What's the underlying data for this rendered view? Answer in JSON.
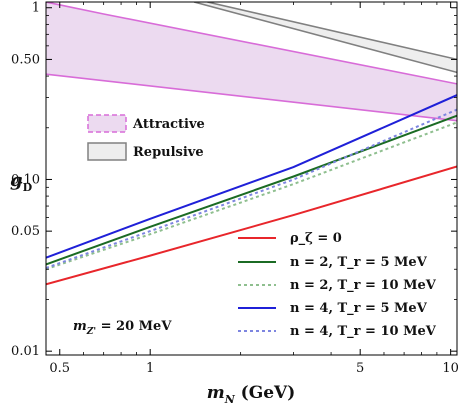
{
  "chart_data": {
    "type": "line",
    "xlabel": "m_N (GeV)",
    "ylabel": "g_D",
    "xscale": "log",
    "yscale": "log",
    "xlim": [
      0.45,
      10.5
    ],
    "ylim": [
      0.0095,
      1.08
    ],
    "x_ticks": [
      0.5,
      1,
      5,
      10
    ],
    "x_tick_labels": [
      "0.5",
      "1",
      "5",
      "10"
    ],
    "y_ticks": [
      0.01,
      0.05,
      0.1,
      0.5,
      1
    ],
    "y_tick_labels": [
      "0.01",
      "0.05",
      "0.10",
      "0.50",
      "1"
    ],
    "annotation": "m_{Z'} = 20 MeV",
    "regions": [
      {
        "name": "Attractive",
        "fill": "#ecdaf0",
        "edge": "#d86cd8",
        "upper": [
          {
            "x": 0.45,
            "y": 1.08
          },
          {
            "x": 0.7,
            "y": 0.92
          },
          {
            "x": 10.5,
            "y": 0.36
          }
        ],
        "lower": [
          {
            "x": 0.45,
            "y": 0.41
          },
          {
            "x": 10.5,
            "y": 0.22
          }
        ]
      },
      {
        "name": "Repulsive",
        "fill": "#eeeeee",
        "edge": "#808080",
        "upper": [
          {
            "x": 1.55,
            "y": 1.08
          },
          {
            "x": 10.5,
            "y": 0.5
          }
        ],
        "lower": [
          {
            "x": 1.4,
            "y": 1.08
          },
          {
            "x": 10.5,
            "y": 0.42
          }
        ]
      }
    ],
    "series": [
      {
        "name": "ρ_ζ = 0",
        "color": "#e8262b",
        "dash": "solid",
        "points": [
          {
            "x": 0.45,
            "y": 0.0245
          },
          {
            "x": 1,
            "y": 0.036
          },
          {
            "x": 3,
            "y": 0.062
          },
          {
            "x": 10.5,
            "y": 0.119
          }
        ]
      },
      {
        "name": "n = 2, T_r = 5 MeV",
        "color": "#1b6b24",
        "dash": "solid",
        "points": [
          {
            "x": 0.45,
            "y": 0.032
          },
          {
            "x": 1,
            "y": 0.053
          },
          {
            "x": 3,
            "y": 0.104
          },
          {
            "x": 10.5,
            "y": 0.235
          }
        ]
      },
      {
        "name": "n = 2, T_r = 10 MeV",
        "color": "#8fbf8f",
        "dash": "dotted",
        "points": [
          {
            "x": 0.45,
            "y": 0.03
          },
          {
            "x": 1,
            "y": 0.048
          },
          {
            "x": 3,
            "y": 0.094
          },
          {
            "x": 10.5,
            "y": 0.215
          }
        ]
      },
      {
        "name": "n = 4, T_r = 5 MeV",
        "color": "#1f20d8",
        "dash": "solid",
        "points": [
          {
            "x": 0.45,
            "y": 0.035
          },
          {
            "x": 1,
            "y": 0.059
          },
          {
            "x": 3,
            "y": 0.118
          },
          {
            "x": 10.5,
            "y": 0.31
          }
        ]
      },
      {
        "name": "n = 4, T_r = 10 MeV",
        "color": "#7d85e0",
        "dash": "dotted",
        "points": [
          {
            "x": 0.45,
            "y": 0.0305
          },
          {
            "x": 1,
            "y": 0.05
          },
          {
            "x": 3,
            "y": 0.1
          },
          {
            "x": 10.5,
            "y": 0.255
          }
        ]
      }
    ],
    "legend_regions": [
      {
        "label": "Attractive"
      },
      {
        "label": "Repulsive"
      }
    ],
    "legend_series": [
      {
        "label": "ρ_ζ = 0"
      },
      {
        "label": "n = 2, T_r = 5 MeV"
      },
      {
        "label": "n = 2, T_r = 10 MeV"
      },
      {
        "label": "n = 4, T_r = 5 MeV"
      },
      {
        "label": "n = 4, T_r = 10 MeV"
      }
    ]
  }
}
